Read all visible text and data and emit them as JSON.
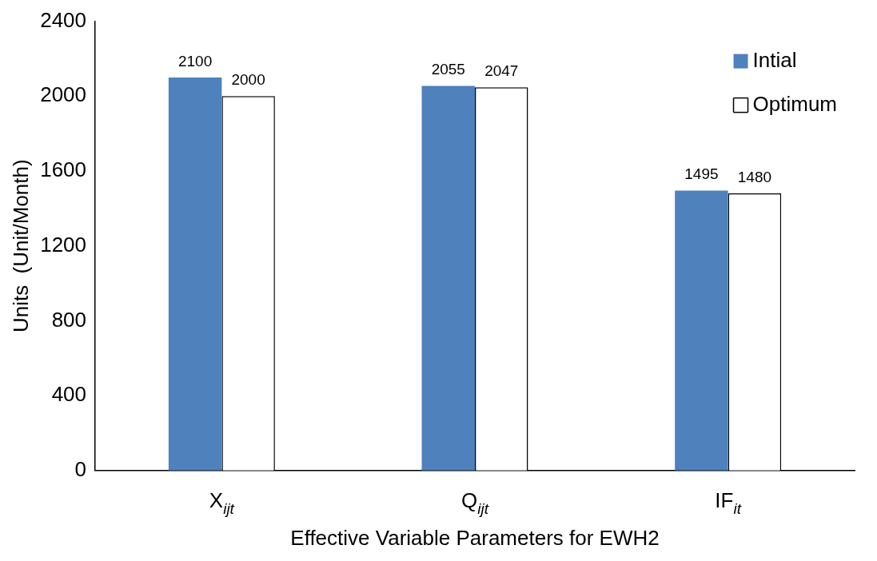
{
  "chart_data": {
    "type": "bar",
    "xlabel": "Effective Variable Parameters for EWH2",
    "ylabel": "Units  (Unit/Month)",
    "categories": [
      "X$_{ijt}$",
      "Q$_{ijt}$",
      "IF$_{it}$"
    ],
    "series": [
      {
        "name": "Intial",
        "color": "#4f81bd",
        "values": [
          2100,
          2055,
          1495
        ]
      },
      {
        "name": "Optimum",
        "color": "#ffffff",
        "values": [
          2000,
          2047,
          1480
        ]
      }
    ],
    "ylim": [
      0,
      2400
    ],
    "yticks": [
      0,
      400,
      800,
      1200,
      1600,
      2000,
      2400
    ],
    "grid": false,
    "legend": "top right",
    "data_labels": true
  }
}
